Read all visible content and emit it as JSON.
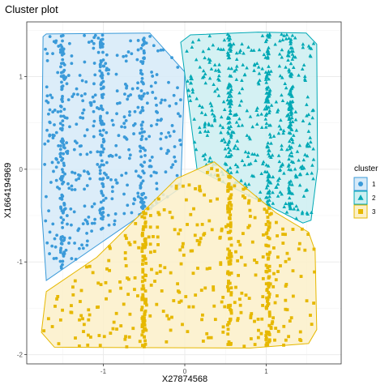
{
  "chart_data": {
    "type": "scatter",
    "title": "Cluster plot",
    "xlabel": "X27874568",
    "ylabel": "X1664194969",
    "xlim": [
      -1.94,
      1.92
    ],
    "ylim": [
      -2.1,
      1.59
    ],
    "x_ticks": [
      -1,
      0,
      1
    ],
    "x_tick_labels": [
      "-1",
      "0",
      "1"
    ],
    "y_ticks": [
      -2,
      -1,
      0,
      1
    ],
    "y_tick_labels": [
      "-2",
      "-1",
      "0",
      "1"
    ],
    "grid": true,
    "legend": {
      "title": "cluster",
      "position": "right",
      "entries": [
        "1",
        "2",
        "3"
      ]
    },
    "series": [
      {
        "name": "1",
        "marker": "circle",
        "color": "#3A9AD9",
        "fill": "#D6EAF8",
        "hull": [
          [
            -1.74,
            1.43
          ],
          [
            -1.7,
            1.46
          ],
          [
            -0.43,
            1.47
          ],
          [
            0.0,
            1.05
          ],
          [
            -0.05,
            -0.2
          ],
          [
            -1.7,
            -1.2
          ],
          [
            -1.76,
            -0.4
          ]
        ],
        "x_range": [
          -1.72,
          -0.03
        ],
        "y_range": [
          -1.1,
          1.45
        ]
      },
      {
        "name": "2",
        "marker": "triangle",
        "color": "#00A9B5",
        "fill": "#CDEFF1",
        "hull": [
          [
            -0.05,
            1.37
          ],
          [
            0.07,
            1.45
          ],
          [
            0.9,
            1.48
          ],
          [
            1.49,
            1.47
          ],
          [
            1.62,
            1.35
          ],
          [
            1.63,
            0.0
          ],
          [
            1.55,
            -0.55
          ],
          [
            1.45,
            -0.58
          ],
          [
            0.15,
            0.0
          ]
        ],
        "x_range": [
          0.0,
          1.6
        ],
        "y_range": [
          -0.55,
          1.46
        ]
      },
      {
        "name": "3",
        "marker": "square",
        "color": "#E6B800",
        "fill": "#FBF0C9",
        "hull": [
          [
            0.36,
            0.08
          ],
          [
            1.12,
            -0.47
          ],
          [
            1.52,
            -0.68
          ],
          [
            1.6,
            -0.88
          ],
          [
            1.62,
            -1.73
          ],
          [
            1.52,
            -1.88
          ],
          [
            0.8,
            -1.93
          ],
          [
            -1.6,
            -1.92
          ],
          [
            -1.76,
            -1.76
          ],
          [
            -1.7,
            -1.32
          ],
          [
            -1.08,
            -0.95
          ],
          [
            -0.1,
            -0.1
          ]
        ],
        "x_range": [
          -1.74,
          1.6
        ],
        "y_range": [
          -1.92,
          0.06
        ]
      }
    ]
  }
}
